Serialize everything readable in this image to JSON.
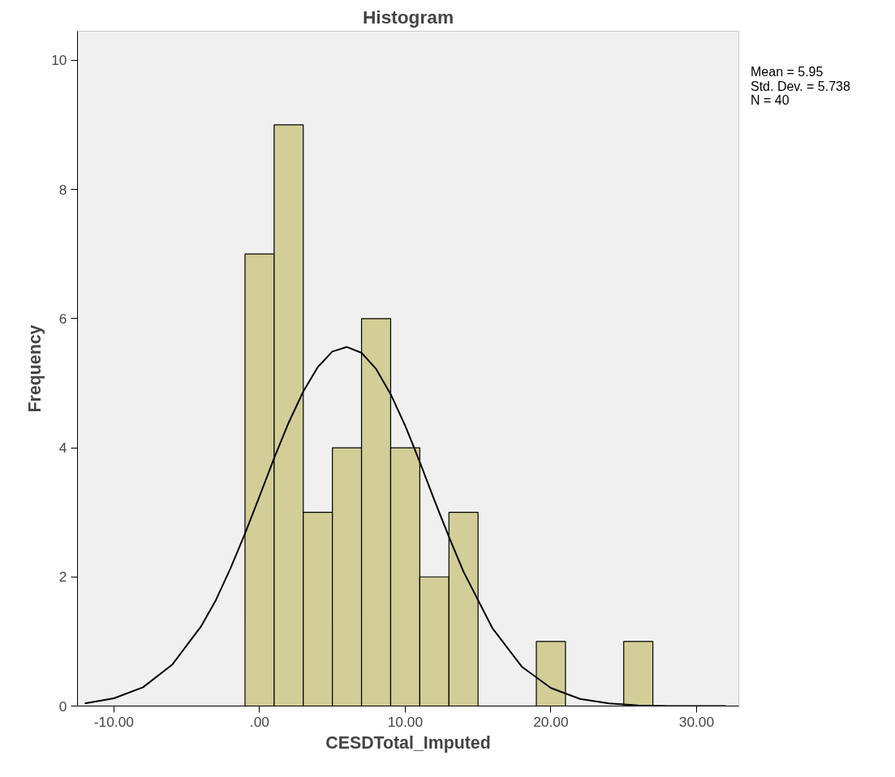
{
  "chart_data": {
    "type": "histogram",
    "title": "Histogram",
    "xlabel": "CESDTotal_Imputed",
    "ylabel": "Frequency",
    "bins": [
      -1,
      1,
      3,
      5,
      7,
      9,
      11,
      13,
      15,
      17,
      19,
      21,
      23,
      25,
      27
    ],
    "values": [
      7,
      9,
      3,
      4,
      6,
      4,
      2,
      3,
      0,
      0,
      1,
      0,
      0,
      1
    ],
    "color": "#d3ce97",
    "series": [
      {
        "type": "line",
        "color": "#000000",
        "x": [
          -12,
          -10,
          -8,
          -6,
          -4,
          -3,
          -2,
          -1,
          0,
          1,
          2,
          3,
          4,
          5,
          6,
          7,
          8,
          9,
          10,
          11,
          12,
          13,
          14,
          16,
          18,
          20,
          22,
          24,
          26,
          28,
          30,
          32
        ],
        "values": [
          0.04,
          0.12,
          0.29,
          0.64,
          1.24,
          1.64,
          2.13,
          2.67,
          3.25,
          3.84,
          4.39,
          4.87,
          5.25,
          5.49,
          5.56,
          5.47,
          5.22,
          4.83,
          4.34,
          3.78,
          3.19,
          2.62,
          2.08,
          1.2,
          0.61,
          0.28,
          0.11,
          0.04,
          0.01,
          0.0,
          0.0,
          0.0
        ]
      }
    ],
    "xlim": [
      -12.5,
      32.9
    ],
    "ylim": [
      0,
      10.45
    ],
    "xticks": [
      {
        "value": -10,
        "label": "-10.00"
      },
      {
        "value": 0,
        "label": ".00"
      },
      {
        "value": 10,
        "label": "10.00"
      },
      {
        "value": 20,
        "label": "20.00"
      },
      {
        "value": 30,
        "label": "30.00"
      }
    ],
    "yticks": [
      0,
      2,
      4,
      6,
      8,
      10
    ],
    "annotations": [
      "Mean = 5.95",
      "Std. Dev. = 5.738",
      "N = 40"
    ]
  }
}
